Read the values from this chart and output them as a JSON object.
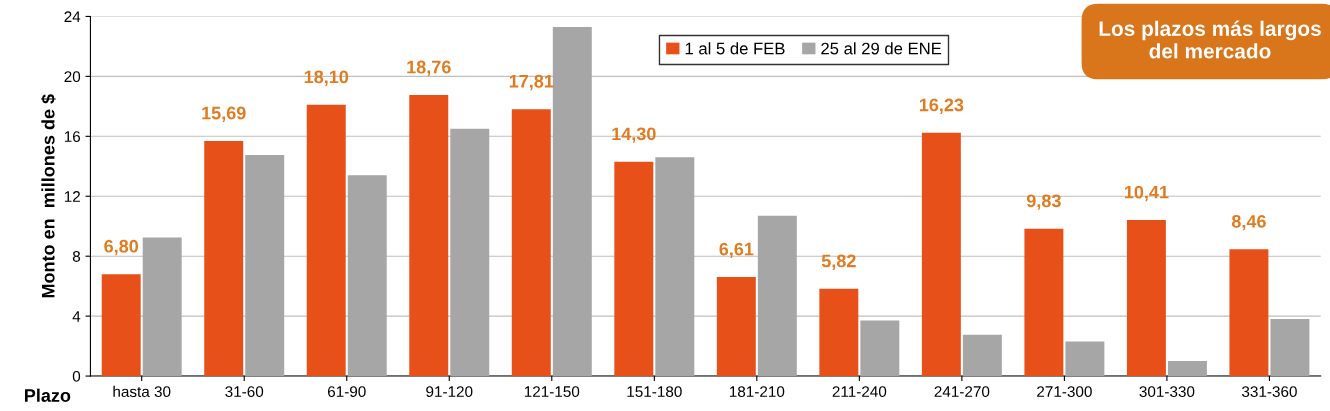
{
  "chart_data": {
    "type": "bar",
    "xlabel": "Plazo",
    "ylabel": "Monto en  millones de $",
    "categories": [
      "hasta 30",
      "31-60",
      "61-90",
      "91-120",
      "121-150",
      "151-180",
      "181-210",
      "211-240",
      "241-270",
      "271-300",
      "301-330",
      "331-360"
    ],
    "series": [
      {
        "name": "1 al 5 de FEB",
        "color": "#e8501a",
        "values": [
          6.8,
          15.69,
          18.1,
          18.76,
          17.81,
          14.3,
          6.61,
          5.82,
          16.23,
          9.83,
          10.41,
          8.46
        ],
        "value_labels": [
          "6,80",
          "15,69",
          "18,10",
          "18,76",
          "17,81",
          "14,30",
          "6,61",
          "5,82",
          "16,23",
          "9,83",
          "10,41",
          "8,46"
        ]
      },
      {
        "name": "25 al 29 de ENE",
        "color": "#a6a6a6",
        "values": [
          9.25,
          14.75,
          13.4,
          16.5,
          23.3,
          14.6,
          10.7,
          3.7,
          2.75,
          2.3,
          1.0,
          3.8
        ]
      }
    ],
    "ylim": [
      0,
      24
    ],
    "yticks": [
      0,
      4,
      8,
      12,
      16,
      20,
      24
    ],
    "grid": "y",
    "legend": "top",
    "annotations": [
      "Los plazos más largos del mercado"
    ]
  }
}
